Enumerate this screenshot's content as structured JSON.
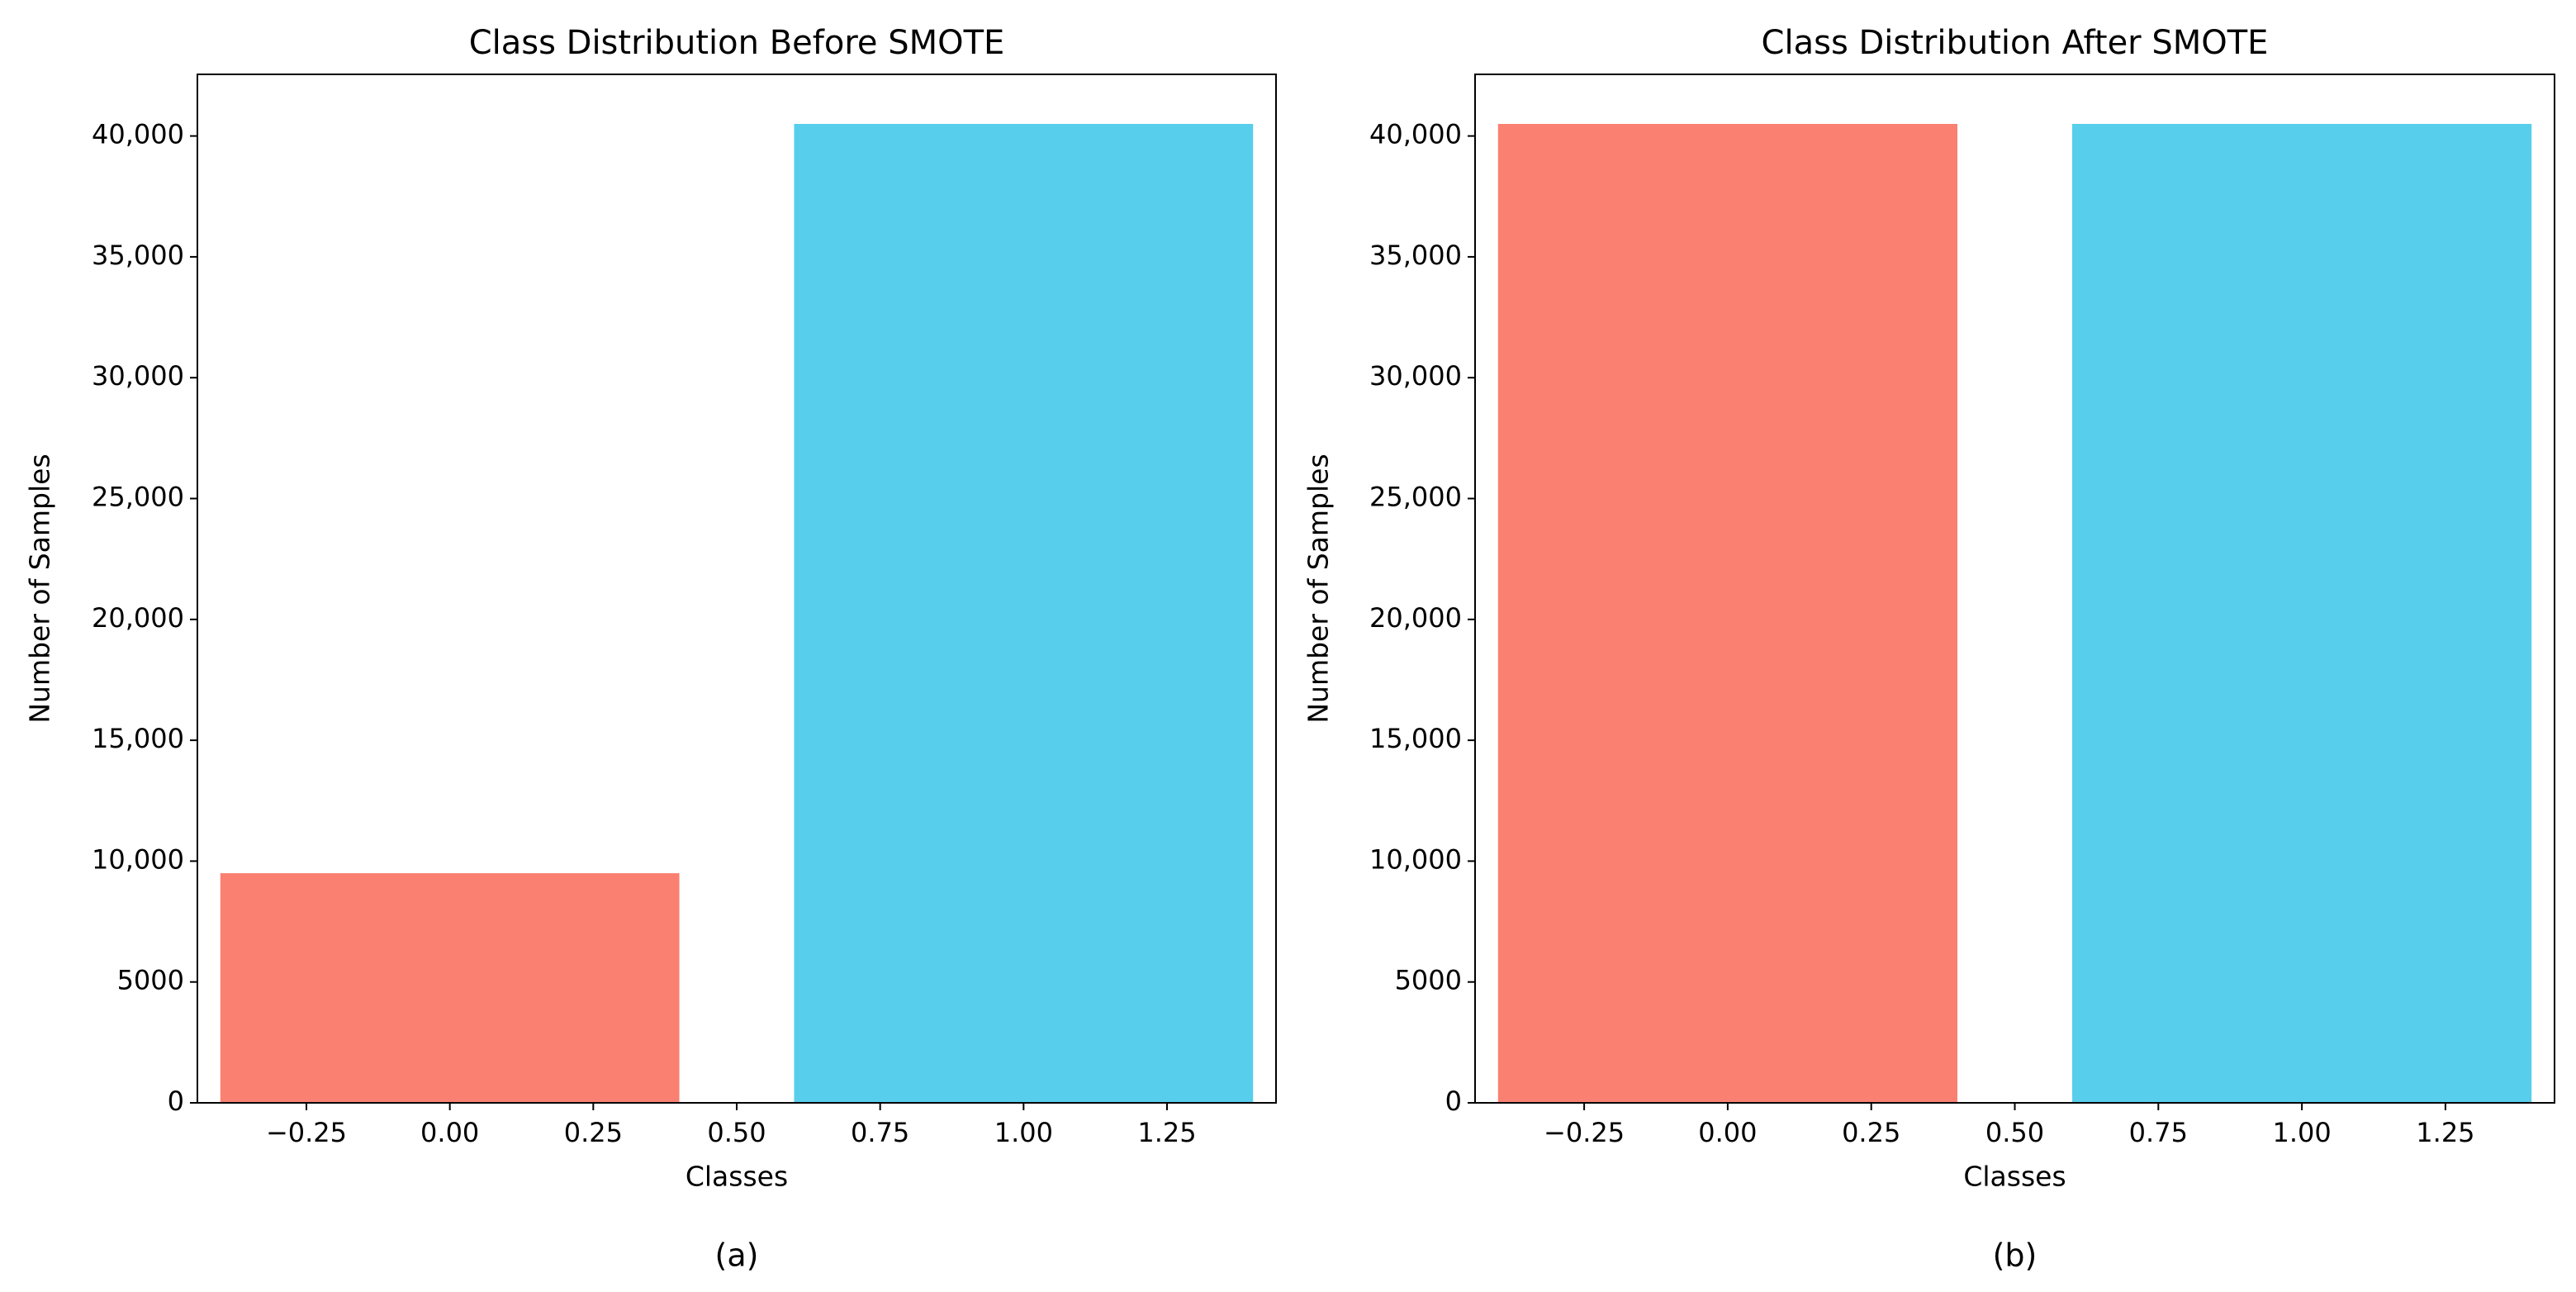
{
  "chart_data": [
    {
      "type": "bar",
      "title": "Class Distribution Before SMOTE",
      "xlabel": "Classes",
      "ylabel": "Number of Samples",
      "caption": "(a)",
      "x": [
        0,
        1
      ],
      "values": [
        9500,
        40500
      ],
      "colors": [
        "#fa8072",
        "#57ceeb"
      ],
      "xlim": [
        -0.44,
        1.44
      ],
      "ylim": [
        0,
        42550
      ],
      "xticks": [
        {
          "value": -0.25,
          "label": "−0.25"
        },
        {
          "value": 0,
          "label": "0.00"
        },
        {
          "value": 0.25,
          "label": "0.25"
        },
        {
          "value": 0.5,
          "label": "0.50"
        },
        {
          "value": 0.75,
          "label": "0.75"
        },
        {
          "value": 1,
          "label": "1.00"
        },
        {
          "value": 1.25,
          "label": "1.25"
        }
      ],
      "yticks": [
        0,
        5000,
        {
          "value": 10000,
          "label": "10,000"
        },
        {
          "value": 15000,
          "label": "15,000"
        },
        {
          "value": 20000,
          "label": "20,000"
        },
        {
          "value": 25000,
          "label": "25,000"
        },
        {
          "value": 30000,
          "label": "30,000"
        },
        {
          "value": 35000,
          "label": "35,000"
        },
        {
          "value": 40000,
          "label": "40,000"
        }
      ]
    },
    {
      "type": "bar",
      "title": "Class Distribution After SMOTE",
      "xlabel": "Classes",
      "ylabel": "Number of Samples",
      "caption": "(b)",
      "x": [
        0,
        1
      ],
      "values": [
        40500,
        40500
      ],
      "colors": [
        "#fa8072",
        "#57ceeb"
      ],
      "xlim": [
        -0.44,
        1.44
      ],
      "ylim": [
        0,
        42550
      ],
      "xticks": [
        {
          "value": -0.25,
          "label": "−0.25"
        },
        {
          "value": 0,
          "label": "0.00"
        },
        {
          "value": 0.25,
          "label": "0.25"
        },
        {
          "value": 0.5,
          "label": "0.50"
        },
        {
          "value": 0.75,
          "label": "0.75"
        },
        {
          "value": 1,
          "label": "1.00"
        },
        {
          "value": 1.25,
          "label": "1.25"
        }
      ],
      "yticks": [
        0,
        5000,
        {
          "value": 10000,
          "label": "10,000"
        },
        {
          "value": 15000,
          "label": "15,000"
        },
        {
          "value": 20000,
          "label": "20,000"
        },
        {
          "value": 25000,
          "label": "25,000"
        },
        {
          "value": 30000,
          "label": "30,000"
        },
        {
          "value": 35000,
          "label": "35,000"
        },
        {
          "value": 40000,
          "label": "40,000"
        }
      ]
    }
  ]
}
